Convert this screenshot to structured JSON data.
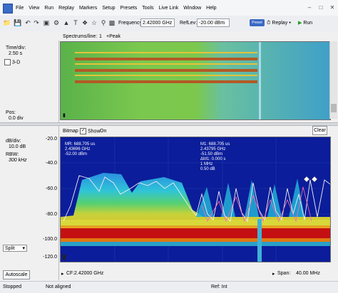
{
  "menu": {
    "items": [
      "File",
      "View",
      "Run",
      "Replay",
      "Markers",
      "Setup",
      "Presets",
      "Tools",
      "Live Link",
      "Window",
      "Help"
    ]
  },
  "toolbar": {
    "frequency_label": "Frequency:",
    "frequency_value": "2.42000 GHz",
    "reflev_label": "RefLev:",
    "reflev_value": "-20.00 dBm",
    "preset_label": "Preset",
    "replay_label": "Replay",
    "run_label": "Run"
  },
  "spectrogram": {
    "spectrums_per_line_label": "Spectrums/line:",
    "spectrums_per_line_value": "1",
    "peak_label": "+Peak",
    "time_div_label": "Time/div:",
    "time_div_value": "2.50 s",
    "threed_label": "3-D",
    "pos_label": "Pos:",
    "pos_value": "0.0 div"
  },
  "spectrum": {
    "bitmap_label": "Bitmap",
    "show_label": "Show",
    "on_label": "On",
    "clear_label": "Clear",
    "db_div_label": "dB/div:",
    "db_div_value": "10.0 dB",
    "rbw_label": "RBW:",
    "rbw_value": "300 kHz",
    "y_ticks": [
      "-20.0",
      "-40.0",
      "-60.0",
      "-80.0",
      "-100.0",
      "-120.0"
    ],
    "marker_mr": {
      "line1": "MR: 688.705 us",
      "line2": "2.43696 GHz",
      "line3": "-52.00 dBm"
    },
    "marker_m1": {
      "line1": "M1: 688.705 us",
      "line2": "2.43795 GHz",
      "line3": "-51.50 dBm",
      "line4": "ΔM1: 0.000 s",
      "line5": "1 MHz",
      "line6": "0.50 dB"
    },
    "split_label": "Split",
    "autoscale_label": "Autoscale",
    "cf_label": "CF:",
    "cf_value": "2.42000 GHz",
    "span_label": "Span:",
    "span_value": "40.00 MHz"
  },
  "statusbar": {
    "state": "Stopped",
    "alignment": "Not aligned",
    "ref": "Ref: Int"
  },
  "colors": {
    "preset_button": "#3b68c4",
    "run_icon": "#1a9a1a",
    "spectrum_background": "#0b1d9a",
    "noise_band_red": "#c41012"
  }
}
